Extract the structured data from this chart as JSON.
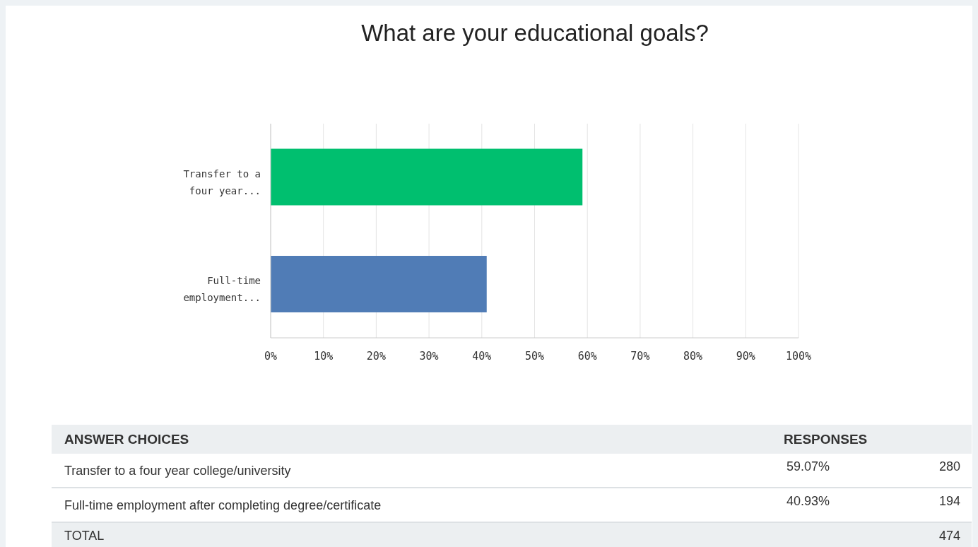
{
  "chart_data": {
    "type": "bar",
    "orientation": "horizontal",
    "title": "What are your educational goals?",
    "categories": [
      "Transfer to a four year...",
      "Full-time employment..."
    ],
    "values": [
      59.07,
      40.93
    ],
    "colors": [
      "#00bf6f",
      "#507cb6"
    ],
    "xlim": [
      0,
      100
    ],
    "xticks": [
      {
        "value": 0,
        "label": "0%"
      },
      {
        "value": 10,
        "label": "10%"
      },
      {
        "value": 20,
        "label": "20%"
      },
      {
        "value": 30,
        "label": "30%"
      },
      {
        "value": 40,
        "label": "40%"
      },
      {
        "value": 50,
        "label": "50%"
      },
      {
        "value": 60,
        "label": "60%"
      },
      {
        "value": 70,
        "label": "70%"
      },
      {
        "value": 80,
        "label": "80%"
      },
      {
        "value": 90,
        "label": "90%"
      },
      {
        "value": 100,
        "label": "100%"
      }
    ],
    "grid": "x",
    "annotations": [
      "ANSWER CHOICES",
      "RESPONSES",
      "Transfer to a four year college/university",
      "59.07%",
      "280",
      "Full-time employment after completing degree/certificate",
      "40.93%",
      "194",
      "TOTAL",
      "474"
    ]
  }
}
